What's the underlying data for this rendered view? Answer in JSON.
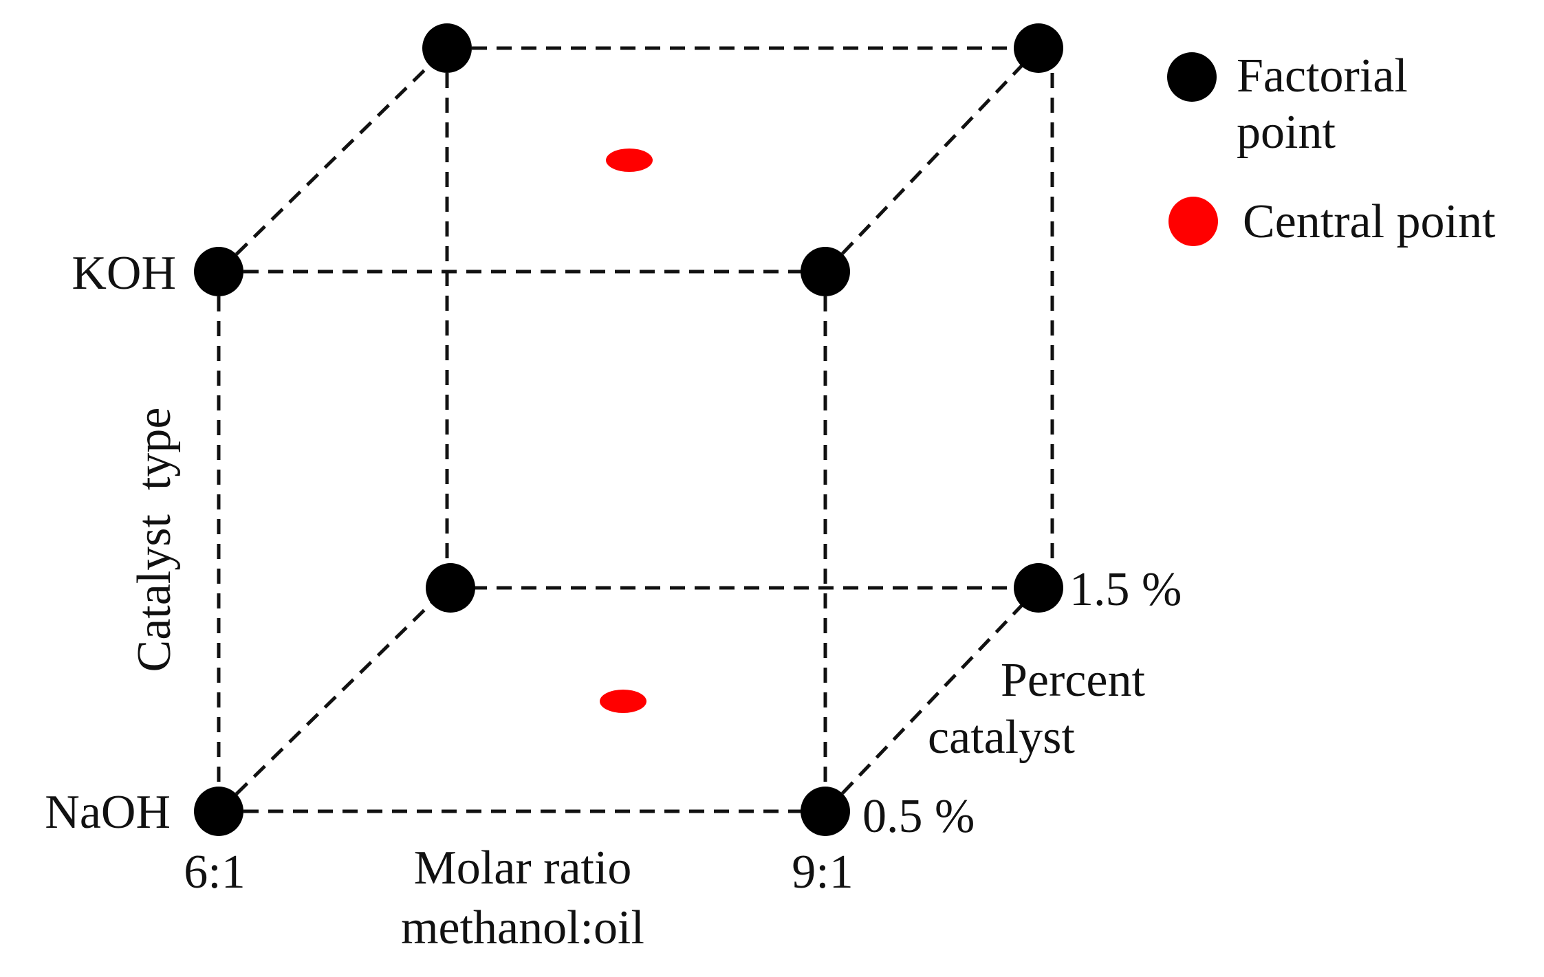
{
  "colors": {
    "factorial_point": "#000000",
    "central_point": "#ff0000",
    "edge": "#111111"
  },
  "axes": {
    "catalyst_type": {
      "label": "Catalyst  type",
      "low": "NaOH",
      "high": "KOH"
    },
    "molar_ratio": {
      "label_line1": "Molar ratio",
      "label_line2": "methanol:oil",
      "low": "6:1",
      "high": "9:1"
    },
    "percent_catalyst": {
      "label_line1": "Percent",
      "label_line2": "catalyst",
      "low": "0.5 %",
      "high": "1.5 %"
    }
  },
  "legend": {
    "factorial_line1": "Factorial",
    "factorial_line2": "point",
    "central": "Central point"
  },
  "design_points": {
    "factorial": [
      {
        "molar_ratio": "6:1",
        "catalyst_type": "NaOH",
        "percent_catalyst": "0.5 %"
      },
      {
        "molar_ratio": "9:1",
        "catalyst_type": "NaOH",
        "percent_catalyst": "0.5 %"
      },
      {
        "molar_ratio": "6:1",
        "catalyst_type": "KOH",
        "percent_catalyst": "0.5 %"
      },
      {
        "molar_ratio": "9:1",
        "catalyst_type": "KOH",
        "percent_catalyst": "0.5 %"
      },
      {
        "molar_ratio": "6:1",
        "catalyst_type": "NaOH",
        "percent_catalyst": "1.5 %"
      },
      {
        "molar_ratio": "9:1",
        "catalyst_type": "NaOH",
        "percent_catalyst": "1.5 %"
      },
      {
        "molar_ratio": "6:1",
        "catalyst_type": "KOH",
        "percent_catalyst": "1.5 %"
      },
      {
        "molar_ratio": "9:1",
        "catalyst_type": "KOH",
        "percent_catalyst": "1.5 %"
      }
    ],
    "central": [
      {
        "catalyst_type": "KOH"
      },
      {
        "catalyst_type": "NaOH"
      }
    ]
  }
}
